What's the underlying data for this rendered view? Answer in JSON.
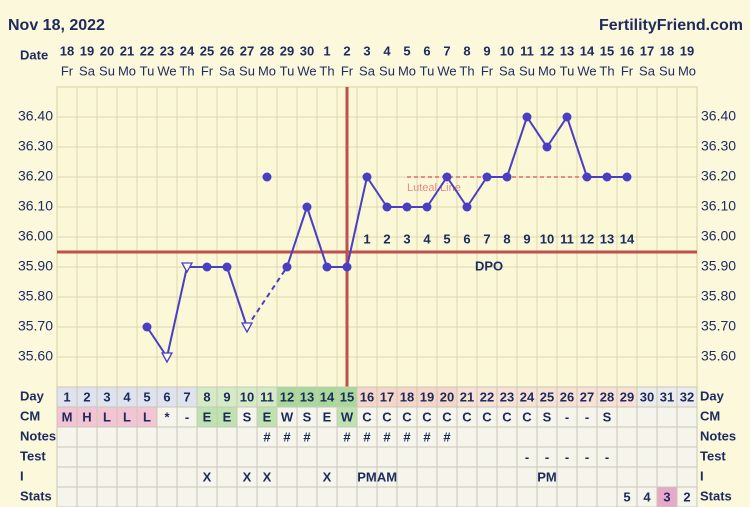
{
  "header": {
    "date": "Nov 18, 2022",
    "site": "FertilityFriend.com"
  },
  "chart_data": {
    "type": "line",
    "row_labels": {
      "date": "Date",
      "day": "Day",
      "cm": "CM",
      "notes": "Notes",
      "test": "Test",
      "intercourse": "I",
      "stats": "Stats"
    },
    "dates": [
      18,
      19,
      20,
      21,
      22,
      23,
      24,
      25,
      26,
      27,
      28,
      29,
      30,
      1,
      2,
      3,
      4,
      5,
      6,
      7,
      8,
      9,
      10,
      11,
      12,
      13,
      14,
      15,
      16,
      17,
      18,
      19
    ],
    "weekdays": [
      "Fr",
      "Sa",
      "Su",
      "Mo",
      "Tu",
      "We",
      "Th",
      "Fr",
      "Sa",
      "Su",
      "Mo",
      "Tu",
      "We",
      "Th",
      "Fr",
      "Sa",
      "Su",
      "Mo",
      "Tu",
      "We",
      "Th",
      "Fr",
      "Sa",
      "Su",
      "Mo",
      "Tu",
      "We",
      "Th",
      "Fr",
      "Sa",
      "Su",
      "Mo"
    ],
    "cycle_days": [
      1,
      2,
      3,
      4,
      5,
      6,
      7,
      8,
      9,
      10,
      11,
      12,
      13,
      14,
      15,
      16,
      17,
      18,
      19,
      20,
      21,
      22,
      23,
      24,
      25,
      26,
      27,
      28,
      29,
      30,
      31,
      32
    ],
    "values": [
      null,
      null,
      null,
      null,
      35.7,
      35.6,
      35.9,
      35.9,
      35.9,
      35.7,
      null,
      35.9,
      36.1,
      35.9,
      35.9,
      36.2,
      36.1,
      36.1,
      36.1,
      36.2,
      36.1,
      36.2,
      36.2,
      36.4,
      36.3,
      36.4,
      36.2,
      36.2,
      36.2,
      null,
      null,
      null
    ],
    "markers": [
      null,
      null,
      null,
      null,
      "dot",
      "open-triangle",
      "open-triangle",
      "dot",
      "dot",
      "open-triangle",
      null,
      "dot",
      "dot",
      "dot",
      "dot",
      "dot",
      "dot",
      "dot",
      "dot",
      "dot",
      "dot",
      "dot",
      "dot",
      "dot",
      "dot",
      "dot",
      "dot",
      "dot",
      "dot",
      null,
      null,
      null
    ],
    "excluded": [
      null,
      null,
      null,
      null,
      null,
      null,
      null,
      null,
      null,
      null,
      36.2,
      null,
      null,
      null,
      null,
      null,
      null,
      null,
      null,
      null,
      null,
      null,
      null,
      null,
      null,
      null,
      null,
      null,
      null,
      null,
      null,
      null
    ],
    "color": "#4a3ec2",
    "ylim": [
      35.5,
      36.5
    ],
    "yticks": [
      {
        "value": 36.4,
        "label": "36.40"
      },
      {
        "value": 36.3,
        "label": "36.30"
      },
      {
        "value": 36.2,
        "label": "36.20"
      },
      {
        "value": 36.1,
        "label": "36.10"
      },
      {
        "value": 36.0,
        "label": "36.00"
      },
      {
        "value": 35.9,
        "label": "35.90"
      },
      {
        "value": 35.8,
        "label": "35.80"
      },
      {
        "value": 35.7,
        "label": "35.70"
      },
      {
        "value": 35.6,
        "label": "35.60"
      }
    ],
    "coverline": 35.95,
    "ovulation_day": 15,
    "line_color": "#c0504d",
    "luteal_line": {
      "label": "Luteal Line",
      "value": 36.2,
      "from_day": 18,
      "to_day": 27,
      "color": "#e88a8a"
    },
    "dpo_label": "DPO",
    "dpo": [
      null,
      null,
      null,
      null,
      null,
      null,
      null,
      null,
      null,
      null,
      null,
      null,
      null,
      null,
      null,
      1,
      2,
      3,
      4,
      5,
      6,
      7,
      8,
      9,
      10,
      11,
      12,
      13,
      14,
      null,
      null,
      null
    ],
    "cm": [
      "M",
      "H",
      "L",
      "L",
      "L",
      "*",
      "-",
      "E",
      "E",
      "S",
      "E",
      "W",
      "S",
      "E",
      "W",
      "C",
      "C",
      "C",
      "C",
      "C",
      "C",
      "C",
      "C",
      "C",
      "S",
      "-",
      "-",
      "S",
      null,
      null,
      null,
      null
    ],
    "notes": [
      null,
      null,
      null,
      null,
      null,
      null,
      null,
      null,
      null,
      null,
      "#",
      "#",
      "#",
      null,
      "#",
      "#",
      "#",
      "#",
      "#",
      "#",
      null,
      null,
      null,
      null,
      null,
      null,
      null,
      null,
      null,
      null,
      null,
      null
    ],
    "test": [
      null,
      null,
      null,
      null,
      null,
      null,
      null,
      null,
      null,
      null,
      null,
      null,
      null,
      null,
      null,
      null,
      null,
      null,
      null,
      null,
      null,
      null,
      null,
      "-",
      "-",
      "-",
      "-",
      "-",
      null,
      null,
      null,
      null
    ],
    "intercourse": [
      null,
      null,
      null,
      null,
      null,
      null,
      null,
      "X",
      null,
      "X",
      "X",
      null,
      null,
      "X",
      null,
      "PM",
      "AM",
      null,
      null,
      null,
      null,
      null,
      null,
      null,
      "PM",
      null,
      null,
      null,
      null,
      null,
      null,
      null
    ],
    "stats": [
      null,
      null,
      null,
      null,
      null,
      null,
      null,
      null,
      null,
      null,
      null,
      null,
      null,
      null,
      null,
      null,
      null,
      null,
      null,
      null,
      null,
      null,
      null,
      null,
      null,
      null,
      null,
      null,
      5,
      4,
      3,
      2
    ],
    "day_cell_colors": [
      "#dfe3ee",
      "#dfe3ee",
      "#dfe3ee",
      "#dfe3ee",
      "#dfe3ee",
      "#dfe3ee",
      "#dfe3ee",
      "#d4ebc6",
      "#d4ebc6",
      "#d4ebc6",
      "#d4ebc6",
      "#a9d99a",
      "#a9d99a",
      "#a9d99a",
      "#a9d99a",
      "#f6d6c8",
      "#f6d6c8",
      "#f6d6c8",
      "#f6d6c8",
      "#f6d6c8",
      "#f8e2d6",
      "#f8e2d6",
      "#f8e2d6",
      "#f8e2d6",
      "#f8e2d6",
      "#f8e2d6",
      "#f8e2d6",
      "#f8e2d6",
      "#f8e2d6",
      "#ececec",
      "#ececec",
      "#ececec"
    ],
    "cm_cell_colors": [
      "#f2c4d4",
      "#f2c4d4",
      "#f2c4d4",
      "#f2c4d4",
      "#f2c4d4",
      "#f6f5ec",
      "#f6f5ec",
      "#bfe3b0",
      "#bfe3b0",
      "#f6f5ec",
      "#bfe3b0",
      "#f6f5ec",
      "#f6f5ec",
      "#f6f5ec",
      "#bfe3b0",
      "#f6f5ec",
      "#f6f5ec",
      "#f6f5ec",
      "#f6f5ec",
      "#f6f5ec",
      "#f6f5ec",
      "#f6f5ec",
      "#f6f5ec",
      "#f6f5ec",
      "#f6f5ec",
      "#f6f5ec",
      "#f6f5ec",
      "#f6f5ec",
      "#f6f5ec",
      "#f6f5ec",
      "#f6f5ec",
      "#f6f5ec"
    ],
    "stats_cell_colors": [
      null,
      null,
      null,
      null,
      null,
      null,
      null,
      null,
      null,
      null,
      null,
      null,
      null,
      null,
      null,
      null,
      null,
      null,
      null,
      null,
      null,
      null,
      null,
      null,
      null,
      null,
      null,
      null,
      null,
      null,
      "#e8a8c8",
      null
    ]
  }
}
